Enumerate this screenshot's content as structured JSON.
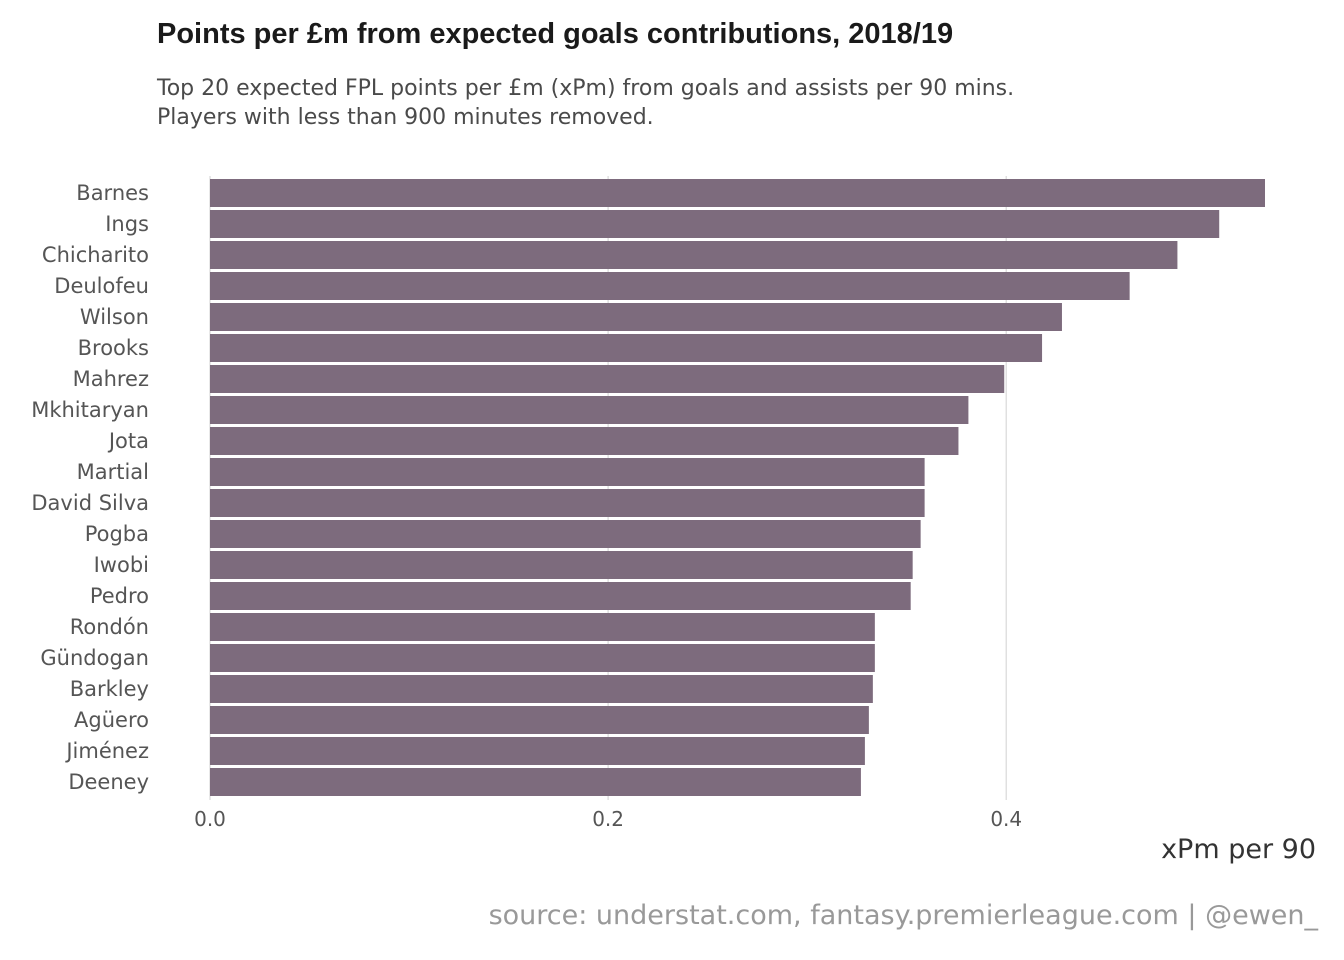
{
  "chart_data": {
    "type": "bar",
    "orientation": "horizontal",
    "title": "Points per £m from expected goals contributions, 2018/19",
    "subtitle": [
      "Top 20 expected FPL points per £m (xPm) from goals and assists per 90 mins.",
      "Players with less than 900 minutes removed."
    ],
    "xlabel": "xPm per 90",
    "ylabel": "",
    "categories": [
      "Barnes",
      "Ings",
      "Chicharito",
      "Deulofeu",
      "Wilson",
      "Brooks",
      "Mahrez",
      "Mkhitaryan",
      "Jota",
      "Martial",
      "David Silva",
      "Pogba",
      "Iwobi",
      "Pedro",
      "Rondón",
      "Gündogan",
      "Barkley",
      "Agüero",
      "Jiménez",
      "Deeney"
    ],
    "values": [
      0.53,
      0.507,
      0.486,
      0.462,
      0.428,
      0.418,
      0.399,
      0.381,
      0.376,
      0.359,
      0.359,
      0.357,
      0.353,
      0.352,
      0.334,
      0.334,
      0.333,
      0.331,
      0.329,
      0.327
    ],
    "xlim": [
      0,
      0.53
    ],
    "xticks": [
      "0.0",
      "0.2",
      "0.4"
    ],
    "xtick_values": [
      0,
      0.2,
      0.4
    ],
    "grid": "vertical",
    "bar_color": "#7d6b7d",
    "source": "source: understat.com, fantasy.premierleague.com | @ewen_"
  }
}
